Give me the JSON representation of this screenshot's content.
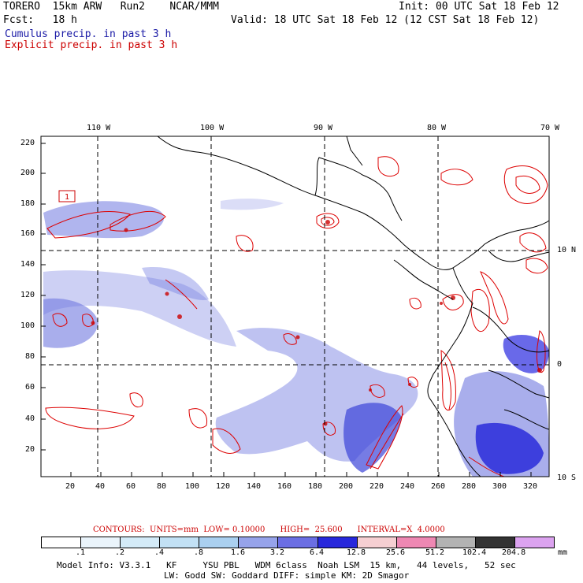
{
  "header": {
    "model": "TORERO  15km ARW   Run2    NCAR/MMM",
    "init": "Init: 00 UTC Sat 18 Feb 12",
    "fcst": "Fcst:   18 h",
    "valid": "Valid: 18 UTC Sat 18 Feb 12 (12 CST Sat 18 Feb 12)",
    "legend_cumulus": "Cumulus precip. in past 3 h",
    "legend_explicit": "Explicit precip. in past 3 h"
  },
  "map": {
    "lon_labels": [
      "110 W",
      "100 W",
      "90 W",
      "80 W",
      "70 W"
    ],
    "lat_labels": [
      "10 N",
      "0",
      "10 S"
    ],
    "y_ticks": [
      "220",
      "200",
      "180",
      "160",
      "140",
      "120",
      "100",
      "80",
      "60",
      "40",
      "20"
    ],
    "x_ticks": [
      "20",
      "40",
      "60",
      "80",
      "100",
      "120",
      "140",
      "160",
      "180",
      "200",
      "220",
      "240",
      "260",
      "280",
      "300",
      "320"
    ],
    "box_label": "1"
  },
  "contour_info": {
    "contours": "CONTOURS:  UNITS=mm  LOW= 0.10000",
    "high": "HIGH=  25.600",
    "interval": "INTERVAL=X  4.0000"
  },
  "colorbar": {
    "colors": [
      "#ffffff",
      "#eaf4fb",
      "#d4ebf8",
      "#c2e1f5",
      "#aad0f0",
      "#96a3ea",
      "#6b6ee3",
      "#2828dc",
      "#f6cfd2",
      "#ee88b3",
      "#b3b3b3",
      "#333333",
      "#dca3f0"
    ],
    "labels": [
      ".1",
      ".2",
      ".4",
      ".8",
      "1.6",
      "3.2",
      "6.4",
      "12.8",
      "25.6",
      "51.2",
      "102.4",
      "204.8"
    ],
    "units": "mm"
  },
  "footer": {
    "line1": "Model Info: V3.3.1   KF     YSU PBL   WDM 6class  Noah LSM  15 km,   44 levels,   52 sec",
    "line2": "LW: Godd SW: Goddard DIFF: simple KM: 2D Smagor"
  }
}
